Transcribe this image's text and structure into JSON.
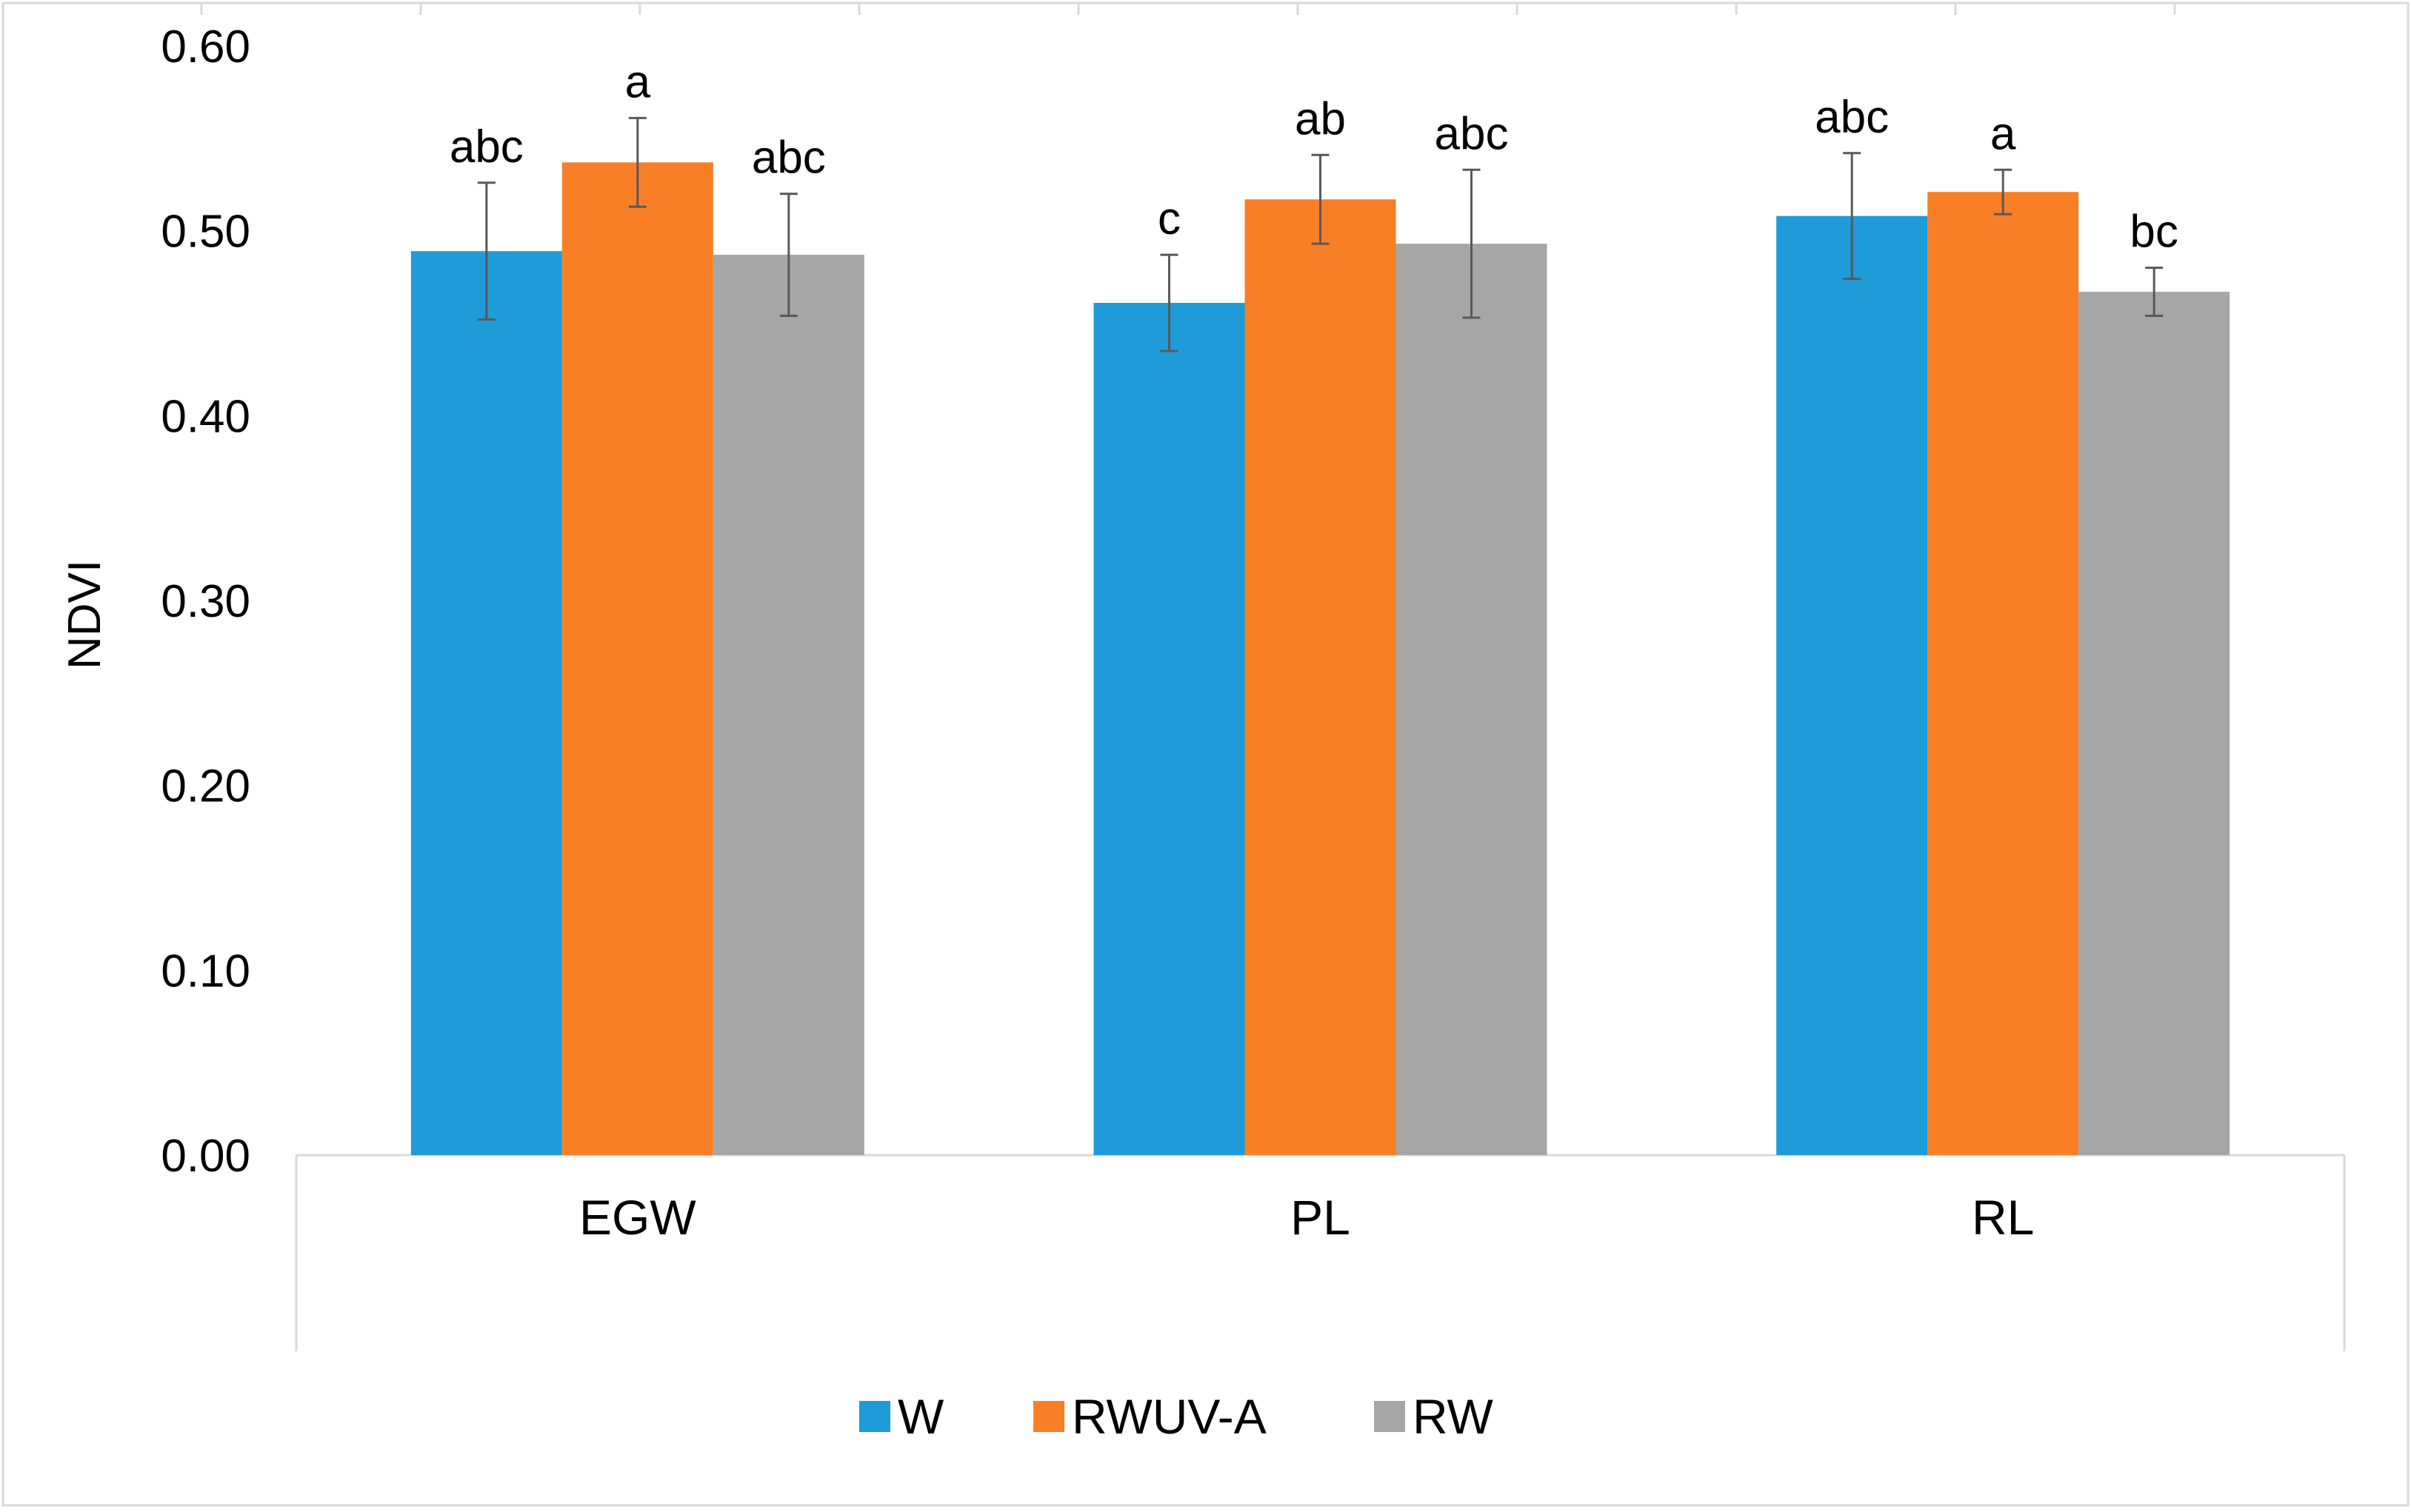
{
  "chart_data": {
    "type": "bar",
    "title": "",
    "xlabel": "",
    "ylabel": "NDVI",
    "ylim": [
      0,
      0.6
    ],
    "yticks": [
      "0.00",
      "0.10",
      "0.20",
      "0.30",
      "0.40",
      "0.50",
      "0.60"
    ],
    "categories": [
      "EGW",
      "PL",
      "RL"
    ],
    "series": [
      {
        "name": "W",
        "color": "#1f9bd7",
        "values": [
          0.489,
          0.461,
          0.508
        ],
        "errors": [
          0.037,
          0.026,
          0.034
        ],
        "labels": [
          "abc",
          "c",
          "abc"
        ]
      },
      {
        "name": "RWUV-A",
        "color": "#f97f27",
        "values": [
          0.537,
          0.517,
          0.521
        ],
        "errors": [
          0.024,
          0.024,
          0.012
        ],
        "labels": [
          "a",
          "ab",
          "a"
        ]
      },
      {
        "name": "RW",
        "color": "#a6a6a6",
        "values": [
          0.487,
          0.493,
          0.467
        ],
        "errors": [
          0.033,
          0.04,
          0.013
        ],
        "labels": [
          "abc",
          "abc",
          "bc"
        ]
      }
    ],
    "legend": "bottom-center",
    "grid": false
  }
}
